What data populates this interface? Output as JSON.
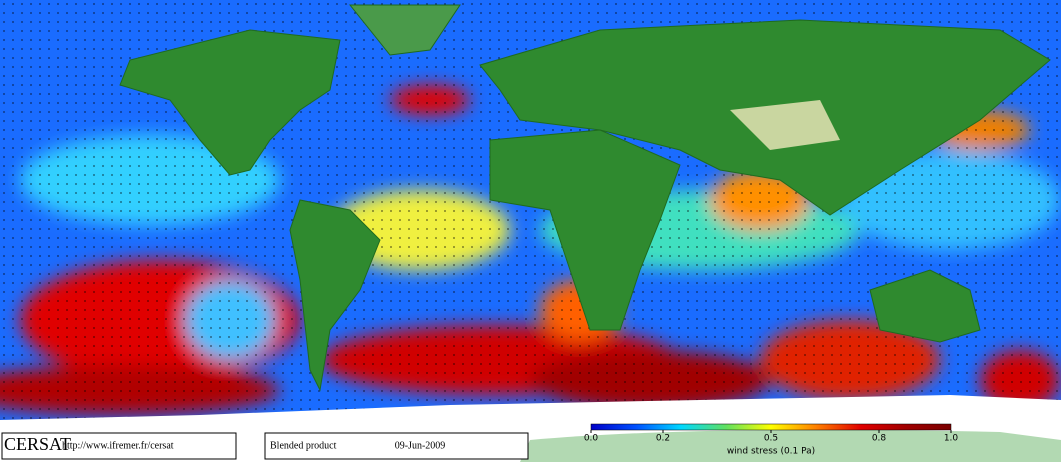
{
  "header": {
    "logo": "CERSAT",
    "url": "http://www.ifremer.fr/cersat",
    "product": "Blended product",
    "date": "09-Jun-2009"
  },
  "colorbar": {
    "lim": [
      0,
      1
    ],
    "ticks": [
      {
        "value": 0,
        "label": "0.0"
      },
      0.2,
      0.5,
      0.8,
      {
        "value": 1,
        "label": "1.0"
      }
    ],
    "label": "wind stress (0.1 Pa)",
    "colors": [
      "#0000c8",
      "#0050ff",
      "#00d8ff",
      "#60e060",
      "#ffff00",
      "#ff8000",
      "#e00000",
      "#a00000",
      "#7a0000"
    ]
  }
}
